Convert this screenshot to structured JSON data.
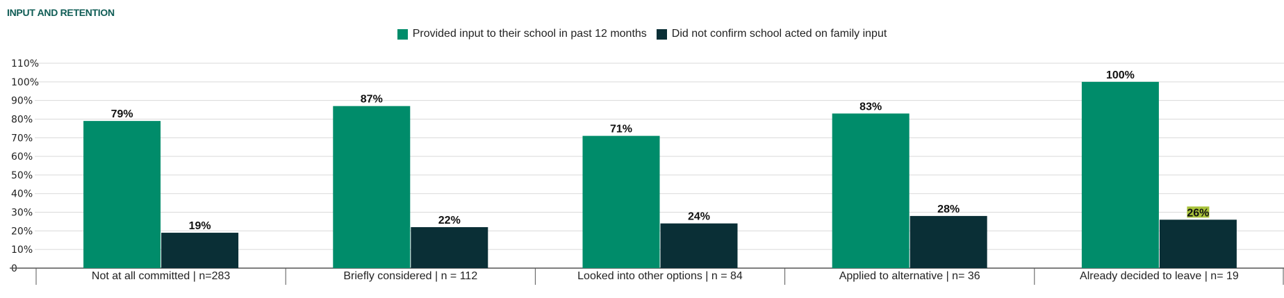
{
  "chart_data": {
    "type": "bar",
    "title": "INPUT AND RETENTION",
    "categories": [
      "Not at all committed | n=283",
      "Briefly considered | n = 112",
      "Looked into other options | n = 84",
      "Applied to alternative | n= 36",
      "Already decided to leave | n= 19"
    ],
    "series": [
      {
        "name": "Provided input to their school in past 12 months",
        "color": "#008c6a",
        "values": [
          79,
          87,
          71,
          83,
          100
        ]
      },
      {
        "name": "Did not confirm school acted on family input",
        "color": "#0a2f36",
        "values": [
          19,
          22,
          24,
          28,
          26
        ]
      }
    ],
    "y_ticks": [
      "0",
      "10%",
      "20%",
      "30%",
      "40%",
      "50%",
      "60%",
      "70%",
      "80%",
      "90%",
      "100%",
      "110%"
    ],
    "ylim": [
      0,
      110
    ],
    "grid": true,
    "legend_position": "top-center",
    "highlight_color": "#a8c23a"
  }
}
